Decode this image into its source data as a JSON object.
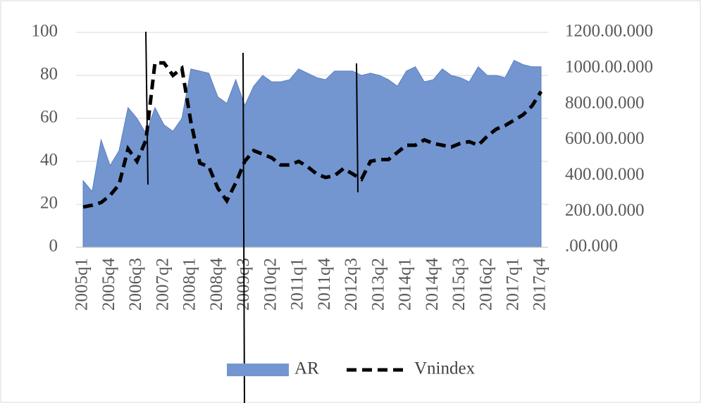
{
  "chart_data": {
    "type": "area",
    "categories": [
      "2005q1",
      null,
      null,
      "2005q4",
      null,
      null,
      "2006q3",
      null,
      null,
      "2007q2",
      null,
      null,
      "2008q1",
      null,
      null,
      "2008q4",
      null,
      null,
      "2009q3",
      null,
      null,
      "2010q2",
      null,
      null,
      "2011q1",
      null,
      null,
      "2011q4",
      null,
      null,
      "2012q3",
      null,
      null,
      "2013q2",
      null,
      null,
      "2014q1",
      null,
      null,
      "2014q4",
      null,
      null,
      "2015q3",
      null,
      null,
      "2016q2",
      null,
      null,
      "2017q1",
      null,
      null,
      "2017q4"
    ],
    "series": [
      {
        "name": "AR",
        "type": "area",
        "color": "#7396d0",
        "values": [
          31,
          26,
          50,
          38,
          45,
          65,
          60,
          53,
          65,
          57,
          54,
          60,
          83,
          82,
          81,
          70,
          67,
          78,
          66,
          75,
          80,
          77,
          77,
          78,
          83,
          81,
          79,
          78,
          82,
          82,
          82,
          80,
          81,
          80,
          78,
          75,
          82,
          84,
          77,
          78,
          83,
          80,
          79,
          77,
          84,
          80,
          80,
          79,
          87,
          85,
          84,
          84
        ]
      },
      {
        "name": "Vnindex",
        "type": "line",
        "axis": "y2",
        "color": "#000000",
        "values": [
          225,
          235,
          250,
          290,
          350,
          550,
          480,
          600,
          1030,
          1030,
          960,
          1000,
          700,
          470,
          450,
          330,
          260,
          360,
          480,
          540,
          520,
          500,
          460,
          460,
          480,
          450,
          410,
          390,
          400,
          440,
          410,
          380,
          480,
          490,
          490,
          530,
          570,
          570,
          600,
          580,
          570,
          560,
          580,
          590,
          570,
          620,
          660,
          680,
          710,
          740,
          790,
          870
        ]
      }
    ],
    "ylim": [
      0,
      100
    ],
    "yticks": [
      0,
      20,
      40,
      60,
      80,
      100
    ],
    "y2lim": [
      0,
      1200
    ],
    "y2ticks": [
      {
        "value": 0,
        "label": ".00.000"
      },
      {
        "value": 200,
        "label": "200.00.000"
      },
      {
        "value": 400,
        "label": "400.00.000"
      },
      {
        "value": 600,
        "label": "600.00.000"
      },
      {
        "value": 800,
        "label": "800.00.000"
      },
      {
        "value": 1000,
        "label": "1000.00.000"
      },
      {
        "value": 1200,
        "label": "1200.00.000"
      }
    ],
    "grid": true,
    "legend": "bottom"
  }
}
